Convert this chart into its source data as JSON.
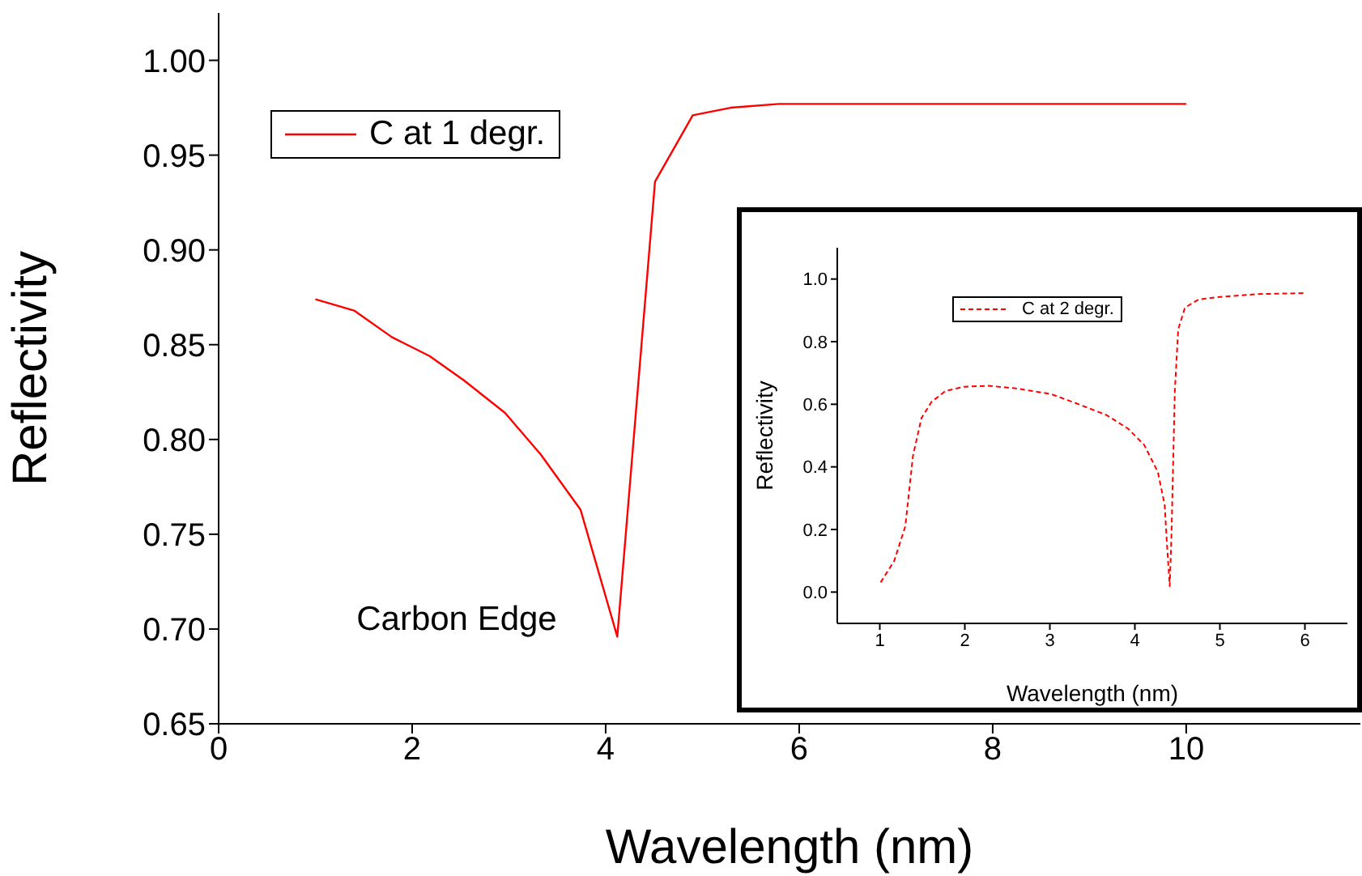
{
  "chart_data": [
    {
      "type": "line",
      "xlabel": "Wavelength (nm)",
      "ylabel": "Reflectivity",
      "annotations": [
        "Carbon Edge"
      ],
      "xlim": [
        0,
        11.8
      ],
      "xticks": [
        0,
        2,
        4,
        6,
        8,
        10
      ],
      "ylim": [
        0.65,
        1.025
      ],
      "yticks": [
        0.65,
        {
          "value": 0.7,
          "label": "0.70"
        },
        0.75,
        {
          "value": 0.8,
          "label": "0.80"
        },
        0.85,
        {
          "value": 0.9,
          "label": "0.90"
        },
        0.95,
        {
          "value": 1,
          "label": "1.00"
        }
      ],
      "legend": "top left",
      "line_style": "solid",
      "series": [
        {
          "name": "C at 1 degr.",
          "color": "#ff0000",
          "x": [
            1.0,
            1.4,
            1.79,
            2.18,
            2.54,
            2.96,
            3.33,
            3.74,
            4.12,
            4.51,
            4.9,
            5.29,
            5.79,
            6.5,
            8,
            10
          ],
          "values": [
            0.874,
            0.868,
            0.854,
            0.844,
            0.831,
            0.814,
            0.792,
            0.763,
            0.696,
            0.936,
            0.971,
            0.975,
            0.977,
            0.977,
            0.977,
            0.977
          ]
        }
      ]
    },
    {
      "type": "line",
      "xlabel": "Wavelength (nm)",
      "ylabel": "Reflectivity",
      "xlim": [
        0.5,
        6.5
      ],
      "xticks": [
        1,
        2,
        3,
        4,
        5,
        6
      ],
      "ylim": [
        -0.1,
        1.1
      ],
      "yticks": [
        {
          "value": 0,
          "label": "0.0"
        },
        0.2,
        0.4,
        0.6,
        0.8,
        {
          "value": 1,
          "label": "1.0"
        }
      ],
      "legend": "top",
      "line_style": "dashed",
      "series": [
        {
          "name": "C at 2 degr.",
          "color": "#ff0000",
          "x": [
            1.01,
            1.17,
            1.3,
            1.39,
            1.49,
            1.61,
            1.77,
            1.99,
            2.28,
            2.59,
            3.01,
            3.35,
            3.67,
            3.92,
            4.11,
            4.27,
            4.35,
            4.38,
            4.41,
            4.43,
            4.47,
            4.51,
            4.59,
            4.75,
            5.0,
            5.44,
            6.0
          ],
          "values": [
            0.031,
            0.1,
            0.21,
            0.435,
            0.556,
            0.608,
            0.642,
            0.656,
            0.659,
            0.651,
            0.633,
            0.599,
            0.565,
            0.522,
            0.47,
            0.384,
            0.28,
            0.143,
            0.019,
            0.177,
            0.642,
            0.84,
            0.909,
            0.935,
            0.943,
            0.952,
            0.955
          ]
        }
      ]
    }
  ]
}
